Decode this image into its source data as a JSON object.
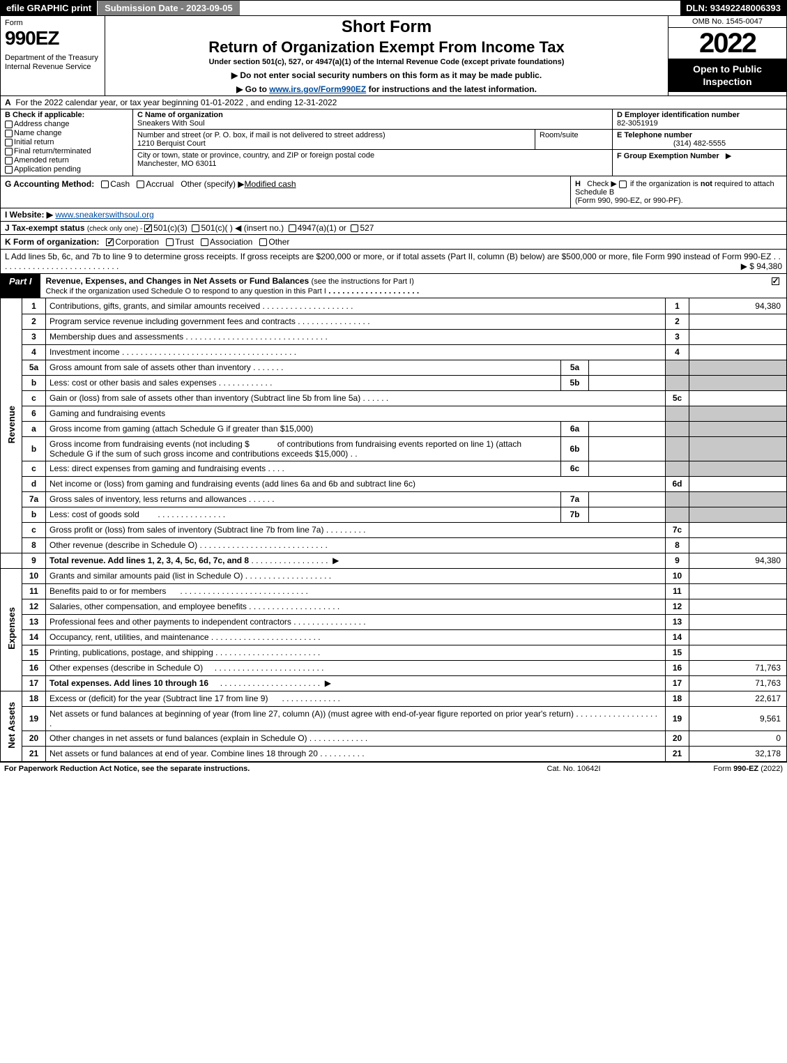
{
  "topbar": {
    "efile": "efile GRAPHIC print",
    "sub_date": "Submission Date - 2023-09-05",
    "dln": "DLN: 93492248006393"
  },
  "head": {
    "form_word": "Form",
    "form_no": "990EZ",
    "dept": "Department of the Treasury\nInternal Revenue Service",
    "short_form": "Short Form",
    "return_title": "Return of Organization Exempt From Income Tax",
    "under": "Under section 501(c), 527, or 4947(a)(1) of the Internal Revenue Code (except private foundations)",
    "warn": "▶ Do not enter social security numbers on this form as it may be made public.",
    "goto_pre": "▶ Go to ",
    "goto_link": "www.irs.gov/Form990EZ",
    "goto_post": " for instructions and the latest information.",
    "omb": "OMB No. 1545-0047",
    "year": "2022",
    "open": "Open to Public Inspection"
  },
  "a": {
    "label": "A",
    "text": "For the 2022 calendar year, or tax year beginning 01-01-2022 , and ending 12-31-2022"
  },
  "b": {
    "label": "B",
    "hdr": "Check if applicable:",
    "o1": "Address change",
    "o2": "Name change",
    "o3": "Initial return",
    "o4": "Final return/terminated",
    "o5": "Amended return",
    "o6": "Application pending"
  },
  "c": {
    "name_lbl": "C Name of organization",
    "name": "Sneakers With Soul",
    "street_lbl": "Number and street (or P. O. box, if mail is not delivered to street address)",
    "street": "1210 Berquist Court",
    "room_lbl": "Room/suite",
    "city_lbl": "City or town, state or province, country, and ZIP or foreign postal code",
    "city": "Manchester, MO  63011"
  },
  "d": {
    "lbl": "D Employer identification number",
    "val": "82-3051919"
  },
  "e": {
    "lbl": "E Telephone number",
    "val": "(314) 482-5555"
  },
  "f": {
    "lbl": "F Group Exemption Number",
    "arrow": "▶"
  },
  "g": {
    "lbl": "G Accounting Method:",
    "cash": "Cash",
    "accr": "Accrual",
    "other": "Other (specify)",
    "val": "Modified cash"
  },
  "h": {
    "lbl": "H",
    "text1": "Check ▶",
    "text2": "if the organization is ",
    "not": "not",
    "text3": " required to attach Schedule B",
    "text4": "(Form 990, 990-EZ, or 990-PF)."
  },
  "i": {
    "lbl": "I Website: ▶",
    "val": "www.sneakerswithsoul.org"
  },
  "j": {
    "lbl": "J Tax-exempt status",
    "note": "(check only one) - ",
    "o1": "501(c)(3)",
    "o2": "501(c)( )",
    "ins": "◀ (insert no.)",
    "o3": "4947(a)(1) or",
    "o4": "527"
  },
  "k": {
    "lbl": "K Form of organization:",
    "o1": "Corporation",
    "o2": "Trust",
    "o3": "Association",
    "o4": "Other"
  },
  "l": {
    "text": "L Add lines 5b, 6c, and 7b to line 9 to determine gross receipts. If gross receipts are $200,000 or more, or if total assets (Part II, column (B) below) are $500,000 or more, file Form 990 instead of Form 990-EZ",
    "amt": "▶ $ 94,380"
  },
  "part1": {
    "lbl": "Part I",
    "title": "Revenue, Expenses, and Changes in Net Assets or Fund Balances",
    "note": "(see the instructions for Part I)",
    "sub": "Check if the organization used Schedule O to respond to any question in this Part I"
  },
  "sections": {
    "rev": "Revenue",
    "exp": "Expenses",
    "net": "Net Assets"
  },
  "lines": {
    "1": {
      "n": "1",
      "d": "Contributions, gifts, grants, and similar amounts received",
      "rn": "1",
      "v": "94,380"
    },
    "2": {
      "n": "2",
      "d": "Program service revenue including government fees and contracts",
      "rn": "2",
      "v": ""
    },
    "3": {
      "n": "3",
      "d": "Membership dues and assessments",
      "rn": "3",
      "v": ""
    },
    "4": {
      "n": "4",
      "d": "Investment income",
      "rn": "4",
      "v": ""
    },
    "5a": {
      "n": "5a",
      "d": "Gross amount from sale of assets other than inventory",
      "in": "5a"
    },
    "5b": {
      "n": "b",
      "d": "Less: cost or other basis and sales expenses",
      "in": "5b"
    },
    "5c": {
      "n": "c",
      "d": "Gain or (loss) from sale of assets other than inventory (Subtract line 5b from line 5a)",
      "rn": "5c",
      "v": ""
    },
    "6": {
      "n": "6",
      "d": "Gaming and fundraising events"
    },
    "6a": {
      "n": "a",
      "d": "Gross income from gaming (attach Schedule G if greater than $15,000)",
      "in": "6a"
    },
    "6b": {
      "n": "b",
      "d1": "Gross income from fundraising events (not including $",
      "d2": "of contributions from fundraising events reported on line 1) (attach Schedule G if the sum of such gross income and contributions exceeds $15,000)",
      "in": "6b"
    },
    "6c": {
      "n": "c",
      "d": "Less: direct expenses from gaming and fundraising events",
      "in": "6c"
    },
    "6d": {
      "n": "d",
      "d": "Net income or (loss) from gaming and fundraising events (add lines 6a and 6b and subtract line 6c)",
      "rn": "6d",
      "v": ""
    },
    "7a": {
      "n": "7a",
      "d": "Gross sales of inventory, less returns and allowances",
      "in": "7a"
    },
    "7b": {
      "n": "b",
      "d": "Less: cost of goods sold",
      "in": "7b"
    },
    "7c": {
      "n": "c",
      "d": "Gross profit or (loss) from sales of inventory (Subtract line 7b from line 7a)",
      "rn": "7c",
      "v": ""
    },
    "8": {
      "n": "8",
      "d": "Other revenue (describe in Schedule O)",
      "rn": "8",
      "v": ""
    },
    "9": {
      "n": "9",
      "d": "Total revenue. Add lines 1, 2, 3, 4, 5c, 6d, 7c, and 8",
      "rn": "9",
      "v": "94,380"
    },
    "10": {
      "n": "10",
      "d": "Grants and similar amounts paid (list in Schedule O)",
      "rn": "10",
      "v": ""
    },
    "11": {
      "n": "11",
      "d": "Benefits paid to or for members",
      "rn": "11",
      "v": ""
    },
    "12": {
      "n": "12",
      "d": "Salaries, other compensation, and employee benefits",
      "rn": "12",
      "v": ""
    },
    "13": {
      "n": "13",
      "d": "Professional fees and other payments to independent contractors",
      "rn": "13",
      "v": ""
    },
    "14": {
      "n": "14",
      "d": "Occupancy, rent, utilities, and maintenance",
      "rn": "14",
      "v": ""
    },
    "15": {
      "n": "15",
      "d": "Printing, publications, postage, and shipping",
      "rn": "15",
      "v": ""
    },
    "16": {
      "n": "16",
      "d": "Other expenses (describe in Schedule O)",
      "rn": "16",
      "v": "71,763"
    },
    "17": {
      "n": "17",
      "d": "Total expenses. Add lines 10 through 16",
      "rn": "17",
      "v": "71,763"
    },
    "18": {
      "n": "18",
      "d": "Excess or (deficit) for the year (Subtract line 17 from line 9)",
      "rn": "18",
      "v": "22,617"
    },
    "19": {
      "n": "19",
      "d": "Net assets or fund balances at beginning of year (from line 27, column (A)) (must agree with end-of-year figure reported on prior year's return)",
      "rn": "19",
      "v": "9,561"
    },
    "20": {
      "n": "20",
      "d": "Other changes in net assets or fund balances (explain in Schedule O)",
      "rn": "20",
      "v": "0"
    },
    "21": {
      "n": "21",
      "d": "Net assets or fund balances at end of year. Combine lines 18 through 20",
      "rn": "21",
      "v": "32,178"
    }
  },
  "footer": {
    "left": "For Paperwork Reduction Act Notice, see the separate instructions.",
    "center": "Cat. No. 10642I",
    "right_pre": "Form ",
    "right_b": "990-EZ",
    "right_post": " (2022)"
  }
}
